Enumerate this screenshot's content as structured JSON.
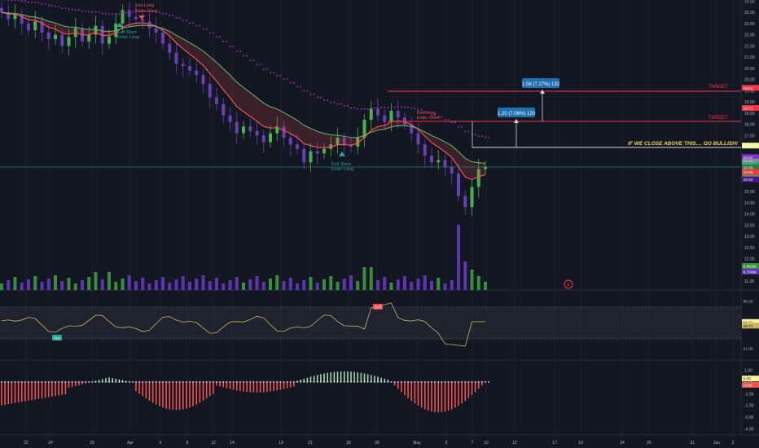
{
  "chart_data": {
    "type": "candlestick",
    "main": {
      "y_ticks": [
        "23.50",
        "23.00",
        "22.50",
        "22.00",
        "21.50",
        "21.00",
        "20.50",
        "20.00",
        "19.50",
        "19.00",
        "18.50",
        "18.00",
        "17.50",
        "17.00",
        "16.50",
        "16.00",
        "15.50",
        "15.00",
        "14.50",
        "14.00",
        "13.50",
        "13.00",
        "12.50",
        "12.00",
        "11.50",
        "11.00"
      ],
      "y_ticks_values": [
        23.5,
        23.0,
        22.5,
        22.0,
        21.5,
        21.0,
        20.5,
        20.0,
        19.5,
        19.0,
        18.5,
        18.0,
        17.5,
        17.0,
        16.5,
        16.0,
        15.5,
        15.0,
        14.5,
        14.0,
        13.5,
        13.0,
        12.5,
        12.0,
        11.5,
        11.0
      ],
      "ylim": [
        10.6,
        23.55
      ],
      "closes": [
        23.0,
        22.7,
        22.9,
        22.5,
        22.2,
        22.6,
        22.1,
        21.8,
        22.0,
        21.5,
        21.9,
        22.3,
        21.7,
        22.0,
        22.4,
        21.6,
        21.9,
        22.5,
        23.1,
        22.8,
        22.7,
        22.6,
        22.3,
        22.1,
        21.6,
        21.2,
        20.7,
        20.6,
        20.4,
        20.2,
        19.8,
        19.2,
        18.9,
        18.4,
        18.1,
        17.6,
        17.9,
        17.7,
        17.5,
        17.2,
        17.6,
        17.9,
        17.4,
        17.1,
        16.9,
        16.3,
        16.8,
        16.7,
        16.9,
        17.1,
        17.4,
        17.1,
        17.0,
        17.4,
        18.2,
        18.7,
        18.4,
        18.1,
        18.6,
        18.3,
        18.0,
        17.6,
        17.1,
        16.6,
        16.3,
        16.4,
        16.1,
        15.8,
        14.8,
        14.3,
        15.2,
        16.0,
        16.1
      ],
      "annotations": {
        "target1": "TARGET",
        "target2": "TARGET",
        "breakout_note": "IF WE CLOSE ABOVE THIS.... GO BULLISH!",
        "measure1": "1.20 (7.06%) 120",
        "measure2": "1.58 (7.27%) 132",
        "signal_exit_long": "Exit Long",
        "signal_enter_short": "Enter Short",
        "signal_exit_short": "Exit Short",
        "signal_enter_long": "Enter Long",
        "signal_exit_short_2": "Exit Short",
        "signal_enter_long_2": "Enter Long",
        "signal_exit_long_2": "Exit Long",
        "signal_enter_short_2": "Enter Short"
      },
      "price_labels": [
        {
          "text": "19.61",
          "color": "#f23645"
        },
        {
          "text": "18.71",
          "color": "#f23645"
        },
        {
          "text": "17.03",
          "color": "#f5f5a0"
        },
        {
          "text": "16.52",
          "color": "#7b2fd6"
        },
        {
          "text": "16.32",
          "color": "#8c8c8c"
        },
        {
          "text": "16.16",
          "color": "#26a69a"
        },
        {
          "text": "16.06",
          "color": "#2e7d32"
        },
        {
          "text": "15.85",
          "color": "#f23645"
        },
        {
          "text": "15.60",
          "color": "#43a047"
        },
        {
          "text": "15.52",
          "color": "#4a148c"
        }
      ],
      "volume_labels": [
        "6.962M",
        "6.704M"
      ]
    },
    "rsi": {
      "y_ticks": [
        "80.00",
        "54.21",
        "49.71",
        "21.99"
      ],
      "band_labels": [
        "Sell",
        "Buy"
      ],
      "ylim": [
        10,
        90
      ]
    },
    "macd": {
      "y_ticks": [
        "1.00",
        "0.00",
        "-1.00",
        "-2.00",
        "-3.00",
        "-4.00"
      ],
      "y_ticks_values": [
        1,
        0,
        -1,
        -2,
        -3,
        -4
      ],
      "value_labels": [
        "0.05",
        "-0.00"
      ],
      "ylim": [
        -4.4,
        1.6
      ]
    },
    "x_ticks": [
      "22",
      "24",
      "29",
      "Apr",
      "6",
      "8",
      "12",
      "14",
      "19",
      "21",
      "26",
      "28",
      "May",
      "5",
      "7",
      "10",
      "12",
      "17",
      "19",
      "24",
      "26",
      "31",
      "Jun",
      "2"
    ]
  },
  "colors": {
    "background": "#131722",
    "up": "#26a69a",
    "down": "#ef5350",
    "ema_red": "#ef5350",
    "ema_green": "#4caf50",
    "dots": "#9c27b0",
    "target_line": "#f23645",
    "breakout_line": "#d1d4dc",
    "measure_box": "#2962ff"
  }
}
